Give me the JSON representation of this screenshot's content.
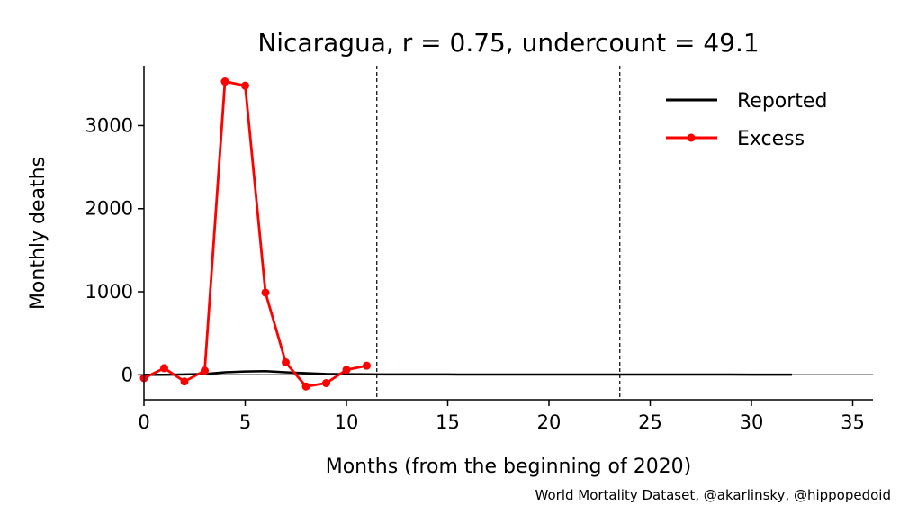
{
  "chart_data": {
    "type": "line",
    "title": "Nicaragua, r = 0.75, undercount = 49.1",
    "xlabel": "Months (from the beginning of 2020)",
    "ylabel": "Monthly deaths",
    "xlim": [
      0,
      36
    ],
    "ylim": [
      -300,
      3720
    ],
    "xticks": [
      0,
      5,
      10,
      15,
      20,
      25,
      30,
      35
    ],
    "yticks": [
      0,
      1000,
      2000,
      3000
    ],
    "grid": false,
    "legend_position": "top-right",
    "vlines": [
      11.5,
      23.5
    ],
    "hline": 0,
    "series": [
      {
        "name": "Reported",
        "color": "#000000",
        "marker": false,
        "x": [
          0,
          1,
          2,
          3,
          4,
          5,
          6,
          7,
          8,
          9,
          10,
          11,
          12,
          13,
          14,
          15,
          16,
          17,
          18,
          19,
          20,
          21,
          22,
          23,
          24,
          25,
          26,
          27,
          28,
          29,
          30,
          31,
          32
        ],
        "y": [
          0,
          0,
          5,
          10,
          30,
          40,
          45,
          30,
          20,
          10,
          8,
          6,
          5,
          5,
          4,
          4,
          3,
          3,
          3,
          3,
          3,
          3,
          3,
          3,
          3,
          3,
          3,
          3,
          3,
          3,
          2,
          2,
          2
        ]
      },
      {
        "name": "Excess",
        "color": "#ff0000",
        "marker": true,
        "x": [
          0,
          1,
          2,
          3,
          4,
          5,
          6,
          7,
          8,
          9,
          10,
          11
        ],
        "y": [
          -40,
          80,
          -80,
          50,
          3530,
          3480,
          990,
          150,
          -140,
          -100,
          60,
          110
        ]
      }
    ]
  },
  "footer": {
    "credit": "World Mortality Dataset, @akarlinsky, @hippopedoid"
  }
}
